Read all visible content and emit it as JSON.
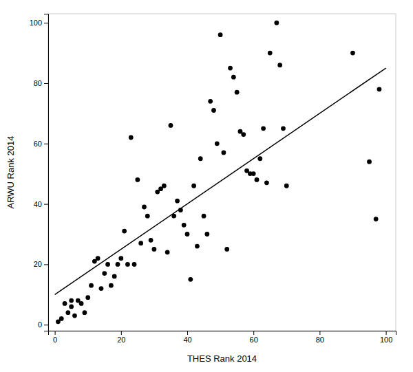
{
  "chart_data": {
    "type": "scatter",
    "xlabel": "THES Rank 2014",
    "ylabel": "ARWU Rank 2014",
    "xlim": [
      -2,
      103
    ],
    "ylim": [
      -2,
      103
    ],
    "xticks": [
      0,
      20,
      40,
      60,
      80,
      100
    ],
    "yticks": [
      0,
      20,
      40,
      60,
      80,
      100
    ],
    "series": [
      {
        "type": "scatter",
        "marker": "circle",
        "color": "black",
        "x": [
          1,
          2,
          3,
          4,
          5,
          5,
          6,
          7,
          8,
          9,
          10,
          11,
          12,
          13,
          14,
          15,
          16,
          17,
          18,
          19,
          20,
          21,
          22,
          23,
          24,
          25,
          26,
          27,
          28,
          29,
          30,
          31,
          32,
          33,
          34,
          35,
          36,
          37,
          38,
          39,
          40,
          41,
          42,
          43,
          44,
          45,
          46,
          47,
          48,
          49,
          50,
          51,
          52,
          53,
          54,
          55,
          56,
          57,
          58,
          59,
          60,
          61,
          62,
          63,
          64,
          65,
          67,
          68,
          69,
          70,
          90,
          95,
          97,
          98
        ],
        "values": [
          1,
          2,
          7,
          4,
          6,
          8,
          3,
          8,
          7,
          4,
          9,
          13,
          21,
          22,
          12,
          17,
          20,
          13,
          16,
          20,
          22,
          31,
          20,
          62,
          20,
          48,
          27,
          39,
          36,
          28,
          25,
          44,
          45,
          46,
          24,
          66,
          36,
          41,
          38,
          33,
          30,
          15,
          46,
          26,
          55,
          36,
          30,
          74,
          71,
          60,
          96,
          57,
          25,
          85,
          82,
          77,
          64,
          63,
          51,
          50,
          50,
          48,
          55,
          65,
          47,
          90,
          100,
          86,
          65,
          46,
          90,
          54,
          35,
          78
        ]
      },
      {
        "type": "line",
        "line_style": "solid",
        "color": "black",
        "x": [
          0,
          100
        ],
        "values": [
          10,
          85
        ]
      }
    ]
  }
}
